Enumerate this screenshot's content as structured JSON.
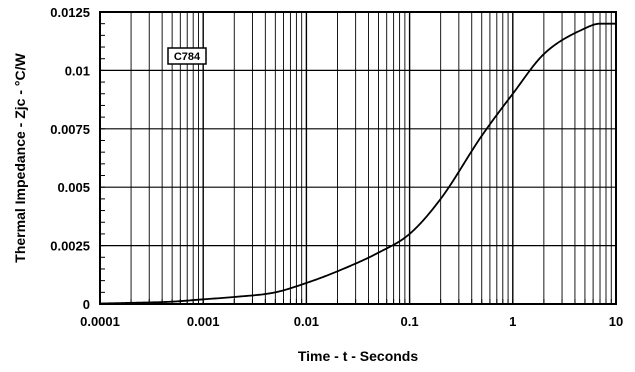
{
  "chart_data": {
    "type": "line",
    "title": "",
    "xlabel": "Time - t - Seconds",
    "ylabel": "Thermal Impedance - Zjc - °C/W",
    "x_scale": "log",
    "xlim": [
      0.0001,
      10
    ],
    "ylim": [
      0,
      0.0125
    ],
    "x_ticks": [
      "0.0001",
      "0.001",
      "0.01",
      "0.1",
      "1",
      "10"
    ],
    "y_ticks": [
      "0",
      "0.0025",
      "0.005",
      "0.0075",
      "0.01",
      "0.0125"
    ],
    "grid": true,
    "annotation": "C784",
    "series": [
      {
        "x": [
          0.0001,
          0.0002,
          0.0005,
          0.001,
          0.002,
          0.005,
          0.01,
          0.02,
          0.05,
          0.1,
          0.2,
          0.5,
          1,
          2,
          5,
          7,
          10
        ],
        "y": [
          2e-05,
          5e-05,
          0.0001,
          0.0002,
          0.0003,
          0.0005,
          0.0009,
          0.0014,
          0.0022,
          0.003,
          0.0045,
          0.0072,
          0.009,
          0.0107,
          0.0118,
          0.012,
          0.012
        ]
      }
    ]
  }
}
